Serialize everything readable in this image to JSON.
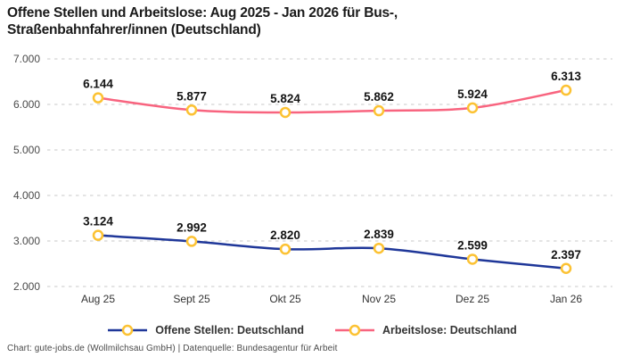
{
  "header": {
    "title": "Offene Stellen und Arbeitslose: Aug 2025 - Jan 2026 für Bus-, Straßenbahnfahrer/innen (Deutschland)"
  },
  "footer": {
    "credit": "Chart: gute-jobs.de (Wollmilchsau GmbH) | Datenquelle: Bundesagentur für Arbeit"
  },
  "chart_data": {
    "type": "line",
    "title": "Offene Stellen und Arbeitslose: Aug 2025 - Jan 2026 für Bus-, Straßenbahnfahrer/innen (Deutschland)",
    "categories": [
      "Aug 25",
      "Sept 25",
      "Okt 25",
      "Nov 25",
      "Dez 25",
      "Jan 26"
    ],
    "series": [
      {
        "name": "Offene Stellen: Deutschland",
        "color": "#1f3799",
        "values": [
          3124,
          2992,
          2820,
          2839,
          2599,
          2397
        ],
        "labels": [
          "3.124",
          "2.992",
          "2.820",
          "2.839",
          "2.599",
          "2.397"
        ]
      },
      {
        "name": "Arbeitslose: Deutschland",
        "color": "#f8647f",
        "values": [
          6144,
          5877,
          5824,
          5862,
          5924,
          6313
        ],
        "labels": [
          "6.144",
          "5.877",
          "5.824",
          "5.862",
          "5.924",
          "6.313"
        ]
      }
    ],
    "y_ticks": [
      {
        "v": 7000,
        "label": "7.000"
      },
      {
        "v": 6000,
        "label": "6.000"
      },
      {
        "v": 5000,
        "label": "5.000"
      },
      {
        "v": 4000,
        "label": "4.000"
      },
      {
        "v": 3000,
        "label": "3.000"
      },
      {
        "v": 2000,
        "label": "2.000"
      }
    ],
    "ylim": [
      2000,
      7000
    ],
    "grid": "horizontal-dashed",
    "grid_color": "#c9c9c9",
    "axis_text_color": "#4a4a4a",
    "xaxis_text_color": "#333333",
    "value_label_color": "#141414",
    "marker": {
      "fill": "#ffffff",
      "stroke": "#fcc233"
    },
    "legend_position": "bottom",
    "xlabel": "",
    "ylabel": ""
  }
}
